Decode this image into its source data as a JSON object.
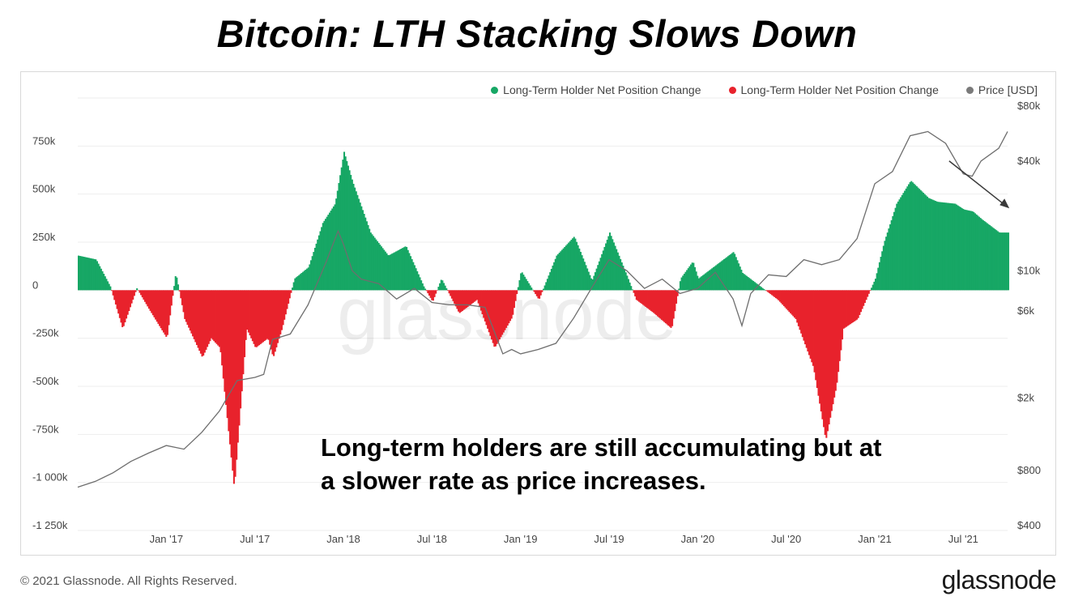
{
  "title": "Bitcoin: LTH Stacking Slows Down",
  "annotation": {
    "line1": "Long-term holders are still accumulating but at",
    "line2": "a slower rate as price increases."
  },
  "footer": {
    "copyright": "© 2021 Glassnode. All Rights Reserved.",
    "logo": "glassnode"
  },
  "watermark": "glassnode",
  "chart_data": {
    "type": "bar+line",
    "legend": [
      {
        "label": "Long-Term Holder Net Position Change",
        "color": "#17a765"
      },
      {
        "label": "Long-Term Holder Net Position Change",
        "color": "#e8222c"
      },
      {
        "label": "Price [USD]",
        "color": "#7a7a7a"
      }
    ],
    "legend_position": "top-right",
    "colors": {
      "positive": "#17a765",
      "negative": "#e8222c",
      "price": "#6e6e6e"
    },
    "x_ticks": [
      "Jan '17",
      "Jul '17",
      "Jan '18",
      "Jul '18",
      "Jan '19",
      "Jul '19",
      "Jan '20",
      "Jul '20",
      "Jan '21",
      "Jul '21"
    ],
    "x_range": [
      2016.5,
      2021.75
    ],
    "y_left": {
      "ticks": [
        750000,
        500000,
        250000,
        0,
        -250000,
        -500000,
        -750000,
        -1000000,
        -1250000
      ],
      "tick_labels": [
        "750k",
        "500k",
        "250k",
        "0",
        "-250k",
        "-500k",
        "-750k",
        "-1 000k",
        "-1 250k"
      ],
      "range": [
        -1250000,
        1000000
      ]
    },
    "y_right": {
      "scale": "log",
      "ticks": [
        80000,
        40000,
        10000,
        6000,
        2000,
        800,
        400
      ],
      "tick_labels": [
        "$80k",
        "$40k",
        "$10k",
        "$6k",
        "$2k",
        "$800",
        "$400"
      ],
      "range": [
        400,
        80000
      ]
    },
    "net_position_series": {
      "name": "Long-Term Holder Net Position Change",
      "x": [
        2016.5,
        2016.6,
        2016.68,
        2016.75,
        2016.83,
        2016.9,
        2017.0,
        2017.05,
        2017.1,
        2017.2,
        2017.25,
        2017.3,
        2017.38,
        2017.45,
        2017.5,
        2017.57,
        2017.6,
        2017.65,
        2017.72,
        2017.8,
        2017.88,
        2017.95,
        2018.0,
        2018.05,
        2018.15,
        2018.25,
        2018.35,
        2018.45,
        2018.5,
        2018.55,
        2018.65,
        2018.75,
        2018.85,
        2018.95,
        2019.0,
        2019.1,
        2019.2,
        2019.3,
        2019.4,
        2019.5,
        2019.6,
        2019.65,
        2019.75,
        2019.85,
        2019.9,
        2019.97,
        2020.0,
        2020.1,
        2020.2,
        2020.25,
        2020.35,
        2020.45,
        2020.55,
        2020.65,
        2020.72,
        2020.78,
        2020.82,
        2020.9,
        2021.0,
        2021.05,
        2021.12,
        2021.2,
        2021.3,
        2021.35,
        2021.45,
        2021.5,
        2021.55,
        2021.6,
        2021.7,
        2021.75
      ],
      "values": [
        180000,
        160000,
        20000,
        -200000,
        10000,
        -100000,
        -250000,
        90000,
        -150000,
        -350000,
        -250000,
        -300000,
        -1030000,
        -200000,
        -300000,
        -250000,
        -350000,
        -200000,
        60000,
        120000,
        350000,
        450000,
        720000,
        560000,
        300000,
        180000,
        230000,
        20000,
        -60000,
        60000,
        -120000,
        -50000,
        -300000,
        -140000,
        100000,
        -50000,
        180000,
        280000,
        50000,
        300000,
        70000,
        -50000,
        -120000,
        -200000,
        60000,
        150000,
        60000,
        130000,
        200000,
        90000,
        20000,
        -50000,
        -150000,
        -400000,
        -780000,
        -500000,
        -200000,
        -150000,
        60000,
        250000,
        450000,
        570000,
        480000,
        460000,
        450000,
        420000,
        410000,
        370000,
        300000,
        300000
      ]
    },
    "price_series": {
      "name": "Price [USD]",
      "x": [
        2016.5,
        2016.6,
        2016.7,
        2016.8,
        2016.9,
        2017.0,
        2017.1,
        2017.2,
        2017.3,
        2017.4,
        2017.5,
        2017.55,
        2017.6,
        2017.7,
        2017.8,
        2017.9,
        2017.97,
        2018.0,
        2018.05,
        2018.1,
        2018.2,
        2018.3,
        2018.4,
        2018.5,
        2018.6,
        2018.7,
        2018.8,
        2018.9,
        2018.95,
        2019.0,
        2019.1,
        2019.2,
        2019.3,
        2019.4,
        2019.5,
        2019.6,
        2019.7,
        2019.8,
        2019.9,
        2020.0,
        2020.1,
        2020.2,
        2020.25,
        2020.3,
        2020.4,
        2020.5,
        2020.6,
        2020.7,
        2020.8,
        2020.9,
        2021.0,
        2021.1,
        2021.2,
        2021.3,
        2021.4,
        2021.5,
        2021.55,
        2021.6,
        2021.7,
        2021.75
      ],
      "values": [
        650,
        700,
        780,
        900,
        1000,
        1100,
        1050,
        1300,
        1700,
        2500,
        2600,
        2700,
        4200,
        4500,
        6500,
        11000,
        16500,
        14000,
        10000,
        9000,
        8500,
        7000,
        8000,
        6700,
        6500,
        6500,
        6300,
        3500,
        3700,
        3500,
        3700,
        4000,
        5500,
        8000,
        11500,
        10000,
        8000,
        9000,
        7500,
        8000,
        9800,
        7000,
        5000,
        7500,
        9500,
        9300,
        11500,
        10800,
        11500,
        15000,
        30000,
        35000,
        55000,
        58000,
        50000,
        34000,
        33000,
        40000,
        47000,
        58000
      ]
    }
  }
}
